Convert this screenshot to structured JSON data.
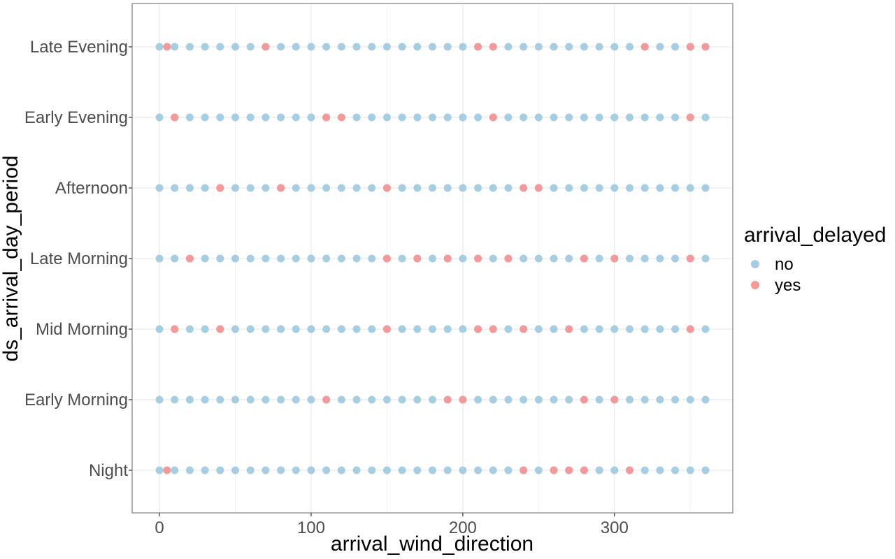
{
  "chart_data": {
    "type": "scatter",
    "xlabel": "arrival_wind_direction",
    "ylabel": "ds_arrival_day_period",
    "xlim": [
      -18,
      378
    ],
    "x_ticks": [
      0,
      100,
      200,
      300
    ],
    "x_tick_labels": [
      "0",
      "100",
      "200",
      "300"
    ],
    "categories": [
      "Night",
      "Early Morning",
      "Mid Morning",
      "Late Morning",
      "Afternoon",
      "Early Evening",
      "Late Evening"
    ],
    "grid": true,
    "legend": {
      "title": "arrival_delayed",
      "placement": "right",
      "entries": [
        {
          "key": "no",
          "label": "no",
          "color": "#a6cee3"
        },
        {
          "key": "yes",
          "label": "yes",
          "color": "#f4999a"
        }
      ]
    },
    "no_x_values": [
      0,
      10,
      20,
      30,
      40,
      50,
      60,
      70,
      80,
      90,
      100,
      110,
      120,
      130,
      140,
      150,
      160,
      170,
      180,
      190,
      200,
      210,
      220,
      230,
      240,
      250,
      260,
      270,
      280,
      290,
      300,
      310,
      320,
      330,
      340,
      350,
      360
    ],
    "yes_points": {
      "Late Evening": [
        5,
        70,
        210,
        220,
        320,
        350,
        360
      ],
      "Early Evening": [
        10,
        110,
        120,
        220,
        350
      ],
      "Afternoon": [
        40,
        80,
        150,
        240,
        250
      ],
      "Late Morning": [
        20,
        150,
        170,
        190,
        210,
        230,
        280,
        300,
        350
      ],
      "Mid Morning": [
        10,
        40,
        150,
        210,
        220,
        240,
        270,
        350
      ],
      "Early Morning": [
        110,
        190,
        200,
        280,
        300
      ],
      "Night": [
        5,
        240,
        260,
        270,
        280,
        310
      ]
    }
  }
}
